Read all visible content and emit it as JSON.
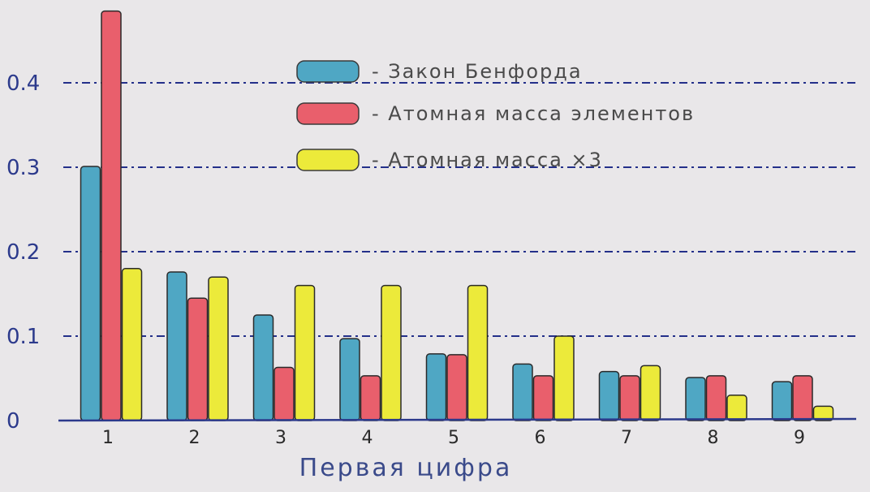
{
  "chart_data": {
    "type": "bar",
    "title": "",
    "xlabel": "Первая цифра",
    "ylabel": "",
    "categories": [
      "1",
      "2",
      "3",
      "4",
      "5",
      "6",
      "7",
      "8",
      "9"
    ],
    "yticks": [
      "0",
      "0.1",
      "0.2",
      "0.3",
      "0.4"
    ],
    "ylim": [
      0,
      0.5
    ],
    "grid": true,
    "legend_position": "top-center",
    "series": [
      {
        "name": "- Закон Бенфорда",
        "color": "#4fa7c4",
        "values": [
          0.301,
          0.176,
          0.125,
          0.097,
          0.079,
          0.067,
          0.058,
          0.051,
          0.046
        ]
      },
      {
        "name": "- Атомная масса элементов",
        "color": "#e95f6c",
        "values": [
          0.485,
          0.145,
          0.063,
          0.053,
          0.078,
          0.053,
          0.053,
          0.053,
          0.053
        ]
      },
      {
        "name": "- Атомная масса ×3",
        "color": "#ecea3a",
        "values": [
          0.18,
          0.17,
          0.16,
          0.16,
          0.16,
          0.1,
          0.065,
          0.03,
          0.017
        ]
      }
    ]
  }
}
